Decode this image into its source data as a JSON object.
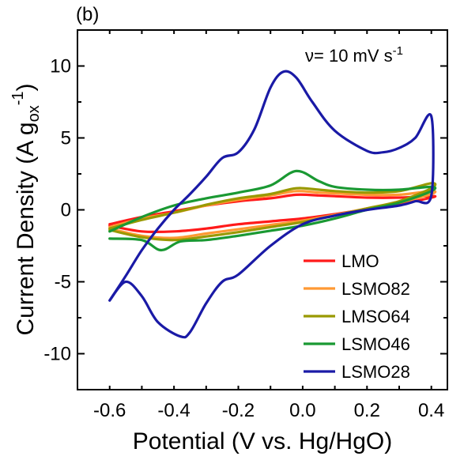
{
  "chart_data": {
    "type": "line",
    "panel_label": "(b)",
    "annotation": {
      "nu": "ν",
      "text_main": "= 10 mV s",
      "text_sup": "-1"
    },
    "xlabel": "Potential (V vs. Hg/HgO)",
    "ylabel": {
      "main": "Current Density (A g",
      "sub": "ox",
      "sup": "-1",
      "close": ")"
    },
    "xlim": [
      -0.7,
      0.45
    ],
    "ylim": [
      -12.5,
      12.5
    ],
    "x_ticks": [
      -0.6,
      -0.4,
      -0.2,
      0.0,
      0.2,
      0.4
    ],
    "x_tick_labels": [
      "-0.6",
      "-0.4",
      "-0.2",
      "0.0",
      "0.2",
      "0.4"
    ],
    "y_ticks": [
      -10,
      -5,
      0,
      5,
      10
    ],
    "y_tick_labels": [
      "-10",
      "-5",
      "0",
      "5",
      "10"
    ],
    "legend_position": "bottom-right",
    "series": [
      {
        "name": "LMO",
        "color": "#ff1a1a",
        "points": [
          [
            -0.6,
            -1.0
          ],
          [
            -0.5,
            -0.5
          ],
          [
            -0.4,
            -0.1
          ],
          [
            -0.3,
            0.3
          ],
          [
            -0.2,
            0.6
          ],
          [
            -0.1,
            0.8
          ],
          [
            -0.02,
            1.05
          ],
          [
            0.05,
            1.0
          ],
          [
            0.1,
            0.95
          ],
          [
            0.2,
            0.85
          ],
          [
            0.3,
            0.85
          ],
          [
            0.4,
            0.95
          ],
          [
            0.4,
            0.85
          ],
          [
            0.3,
            0.4
          ],
          [
            0.2,
            0.05
          ],
          [
            0.1,
            -0.3
          ],
          [
            0.0,
            -0.6
          ],
          [
            -0.1,
            -0.8
          ],
          [
            -0.2,
            -1.0
          ],
          [
            -0.3,
            -1.3
          ],
          [
            -0.4,
            -1.5
          ],
          [
            -0.5,
            -1.5
          ],
          [
            -0.6,
            -1.1
          ]
        ]
      },
      {
        "name": "LSMO82",
        "color": "#ff9933",
        "points": [
          [
            -0.6,
            -1.2
          ],
          [
            -0.5,
            -0.6
          ],
          [
            -0.4,
            -0.2
          ],
          [
            -0.3,
            0.3
          ],
          [
            -0.2,
            0.7
          ],
          [
            -0.1,
            1.0
          ],
          [
            -0.02,
            1.3
          ],
          [
            0.05,
            1.2
          ],
          [
            0.1,
            1.15
          ],
          [
            0.2,
            1.05
          ],
          [
            0.3,
            1.05
          ],
          [
            0.4,
            1.3
          ],
          [
            0.4,
            1.1
          ],
          [
            0.3,
            0.5
          ],
          [
            0.2,
            0.1
          ],
          [
            0.1,
            -0.35
          ],
          [
            0.0,
            -0.75
          ],
          [
            -0.1,
            -1.05
          ],
          [
            -0.2,
            -1.35
          ],
          [
            -0.3,
            -1.65
          ],
          [
            -0.4,
            -1.95
          ],
          [
            -0.5,
            -1.8
          ],
          [
            -0.6,
            -1.3
          ]
        ]
      },
      {
        "name": "LMSO64",
        "color": "#999900",
        "points": [
          [
            -0.6,
            -1.3
          ],
          [
            -0.5,
            -0.7
          ],
          [
            -0.4,
            -0.2
          ],
          [
            -0.3,
            0.35
          ],
          [
            -0.2,
            0.8
          ],
          [
            -0.1,
            1.1
          ],
          [
            -0.02,
            1.5
          ],
          [
            0.05,
            1.4
          ],
          [
            0.1,
            1.3
          ],
          [
            0.2,
            1.2
          ],
          [
            0.3,
            1.3
          ],
          [
            0.4,
            1.85
          ],
          [
            0.4,
            1.5
          ],
          [
            0.3,
            0.6
          ],
          [
            0.2,
            0.1
          ],
          [
            0.1,
            -0.4
          ],
          [
            0.0,
            -0.85
          ],
          [
            -0.1,
            -1.2
          ],
          [
            -0.2,
            -1.55
          ],
          [
            -0.3,
            -1.85
          ],
          [
            -0.4,
            -2.1
          ],
          [
            -0.5,
            -1.9
          ],
          [
            -0.6,
            -1.4
          ]
        ]
      },
      {
        "name": "LSMO46",
        "color": "#1a9933",
        "points": [
          [
            -0.6,
            -1.5
          ],
          [
            -0.5,
            -0.5
          ],
          [
            -0.4,
            0.3
          ],
          [
            -0.3,
            0.8
          ],
          [
            -0.2,
            1.2
          ],
          [
            -0.1,
            1.7
          ],
          [
            -0.02,
            2.7
          ],
          [
            0.05,
            2.0
          ],
          [
            0.1,
            1.6
          ],
          [
            0.2,
            1.4
          ],
          [
            0.3,
            1.4
          ],
          [
            0.4,
            1.6
          ],
          [
            0.4,
            1.3
          ],
          [
            0.3,
            0.5
          ],
          [
            0.2,
            0.0
          ],
          [
            0.1,
            -0.6
          ],
          [
            0.0,
            -1.1
          ],
          [
            -0.1,
            -1.45
          ],
          [
            -0.2,
            -1.8
          ],
          [
            -0.3,
            -2.1
          ],
          [
            -0.38,
            -2.2
          ],
          [
            -0.44,
            -2.8
          ],
          [
            -0.5,
            -2.1
          ],
          [
            -0.6,
            -2.0
          ]
        ]
      },
      {
        "name": "LSMO28",
        "color": "#1a1aa6",
        "points": [
          [
            -0.6,
            -6.3
          ],
          [
            -0.55,
            -4.6
          ],
          [
            -0.5,
            -2.8
          ],
          [
            -0.45,
            -1.3
          ],
          [
            -0.4,
            0.0
          ],
          [
            -0.35,
            1.1
          ],
          [
            -0.3,
            2.3
          ],
          [
            -0.25,
            3.6
          ],
          [
            -0.2,
            4.0
          ],
          [
            -0.15,
            5.6
          ],
          [
            -0.1,
            8.5
          ],
          [
            -0.06,
            9.6
          ],
          [
            -0.02,
            9.2
          ],
          [
            0.03,
            7.5
          ],
          [
            0.1,
            5.5
          ],
          [
            0.2,
            4.1
          ],
          [
            0.25,
            4.0
          ],
          [
            0.3,
            4.3
          ],
          [
            0.35,
            5.0
          ],
          [
            0.4,
            6.5
          ],
          [
            0.4,
            1.0
          ],
          [
            0.35,
            0.6
          ],
          [
            0.3,
            0.3
          ],
          [
            0.2,
            0.0
          ],
          [
            0.1,
            -0.4
          ],
          [
            0.0,
            -1.0
          ],
          [
            -0.1,
            -2.5
          ],
          [
            -0.2,
            -4.5
          ],
          [
            -0.25,
            -5.0
          ],
          [
            -0.3,
            -6.5
          ],
          [
            -0.35,
            -8.5
          ],
          [
            -0.38,
            -8.8
          ],
          [
            -0.45,
            -7.8
          ],
          [
            -0.5,
            -6.0
          ],
          [
            -0.55,
            -5.0
          ],
          [
            -0.6,
            -6.3
          ]
        ]
      }
    ]
  }
}
